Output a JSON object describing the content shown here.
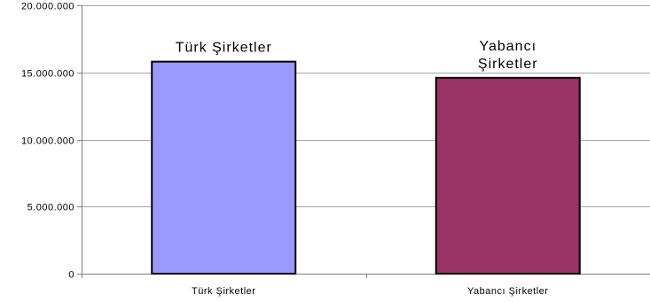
{
  "chart_data": {
    "type": "bar",
    "categories": [
      "Türk Şirketler",
      "Yabancı Şirketler"
    ],
    "values": [
      15800000,
      14600000
    ],
    "data_labels": [
      [
        "Türk Şirketler"
      ],
      [
        "Yabancı",
        "Şirketler"
      ]
    ],
    "y_tick_labels": [
      "0",
      "5.000.000",
      "10.000.000",
      "15.000.000",
      "20.000.000"
    ],
    "y_ticks": [
      0,
      5000000,
      10000000,
      15000000,
      20000000
    ],
    "ylim": [
      0,
      20000000
    ],
    "grid": true,
    "legend": "none",
    "colors": [
      "#9999ff",
      "#993366"
    ]
  }
}
